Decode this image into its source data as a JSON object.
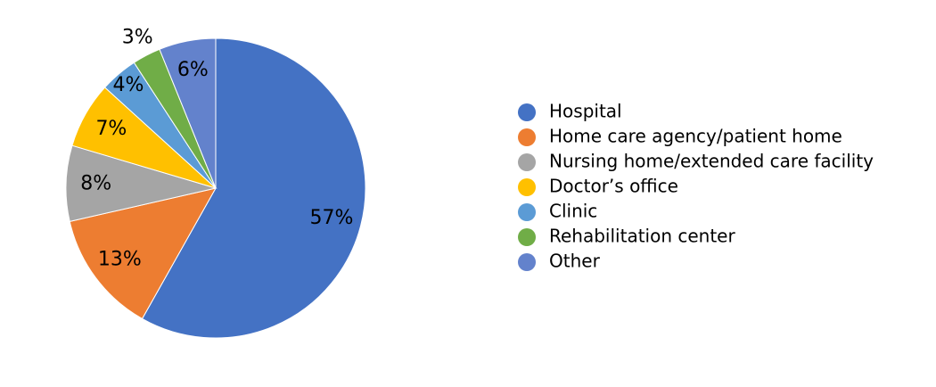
{
  "chart_data": {
    "type": "pie",
    "categories": [
      "Hospital",
      "Home care agency/patient home",
      "Nursing home/extended care facility",
      "Doctor’s office",
      "Clinic",
      "Rehabilitation center",
      "Other"
    ],
    "values": [
      57,
      13,
      8,
      7,
      4,
      3,
      6
    ],
    "value_labels": [
      "57%",
      "13%",
      "8%",
      "7%",
      "4%",
      "3%",
      "6%"
    ],
    "colors": [
      "#4472c4",
      "#ed7d31",
      "#a5a5a5",
      "#ffc000",
      "#5b9bd5",
      "#70ad47",
      "#6382cc"
    ],
    "legend": "right"
  }
}
